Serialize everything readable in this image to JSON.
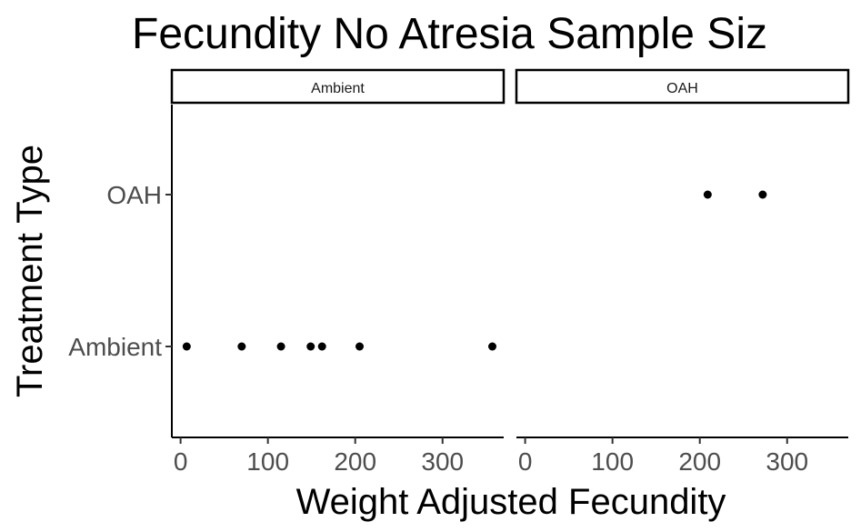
{
  "chart_data": {
    "type": "scatter",
    "title": "Fecundity No Atresia Sample Siz",
    "xlabel": "Weight Adjusted Fecundity",
    "ylabel": "Treatment Type",
    "y_categories": [
      "Ambient",
      "OAH"
    ],
    "x_ticks": [
      0,
      100,
      200,
      300
    ],
    "xlim": [
      -10,
      370
    ],
    "grid": false,
    "point_color": "#000000",
    "panels": [
      {
        "label": "Ambient",
        "points": [
          {
            "x": 7,
            "y": "Ambient"
          },
          {
            "x": 70,
            "y": "Ambient"
          },
          {
            "x": 115,
            "y": "Ambient"
          },
          {
            "x": 149,
            "y": "Ambient"
          },
          {
            "x": 162,
            "y": "Ambient"
          },
          {
            "x": 205,
            "y": "Ambient"
          },
          {
            "x": 357,
            "y": "Ambient"
          }
        ]
      },
      {
        "label": "OAH",
        "points": [
          {
            "x": 209,
            "y": "OAH"
          },
          {
            "x": 272,
            "y": "OAH"
          }
        ]
      }
    ]
  }
}
